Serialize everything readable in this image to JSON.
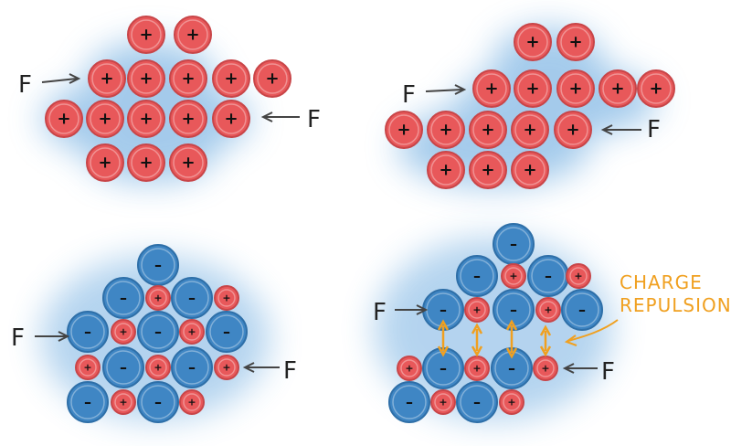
{
  "force_label": "F",
  "cation_sign": "+",
  "anion_sign": "–",
  "annotation": {
    "line1": "CHARGE",
    "line2": "REPULSION"
  },
  "colors": {
    "cation_fill": "#e8585a",
    "cation_stroke": "#c84548",
    "anion_fill": "#3f86c4",
    "anion_stroke": "#2e6fa8",
    "halo": "#5aa0dc",
    "arrow": "#444444",
    "annotation": "#f0a020"
  },
  "panels": [
    {
      "name": "metal-before",
      "type": "metal"
    },
    {
      "name": "metal-after",
      "type": "metal"
    },
    {
      "name": "ionic-before",
      "type": "ionic"
    },
    {
      "name": "ionic-after",
      "type": "ionic"
    }
  ]
}
